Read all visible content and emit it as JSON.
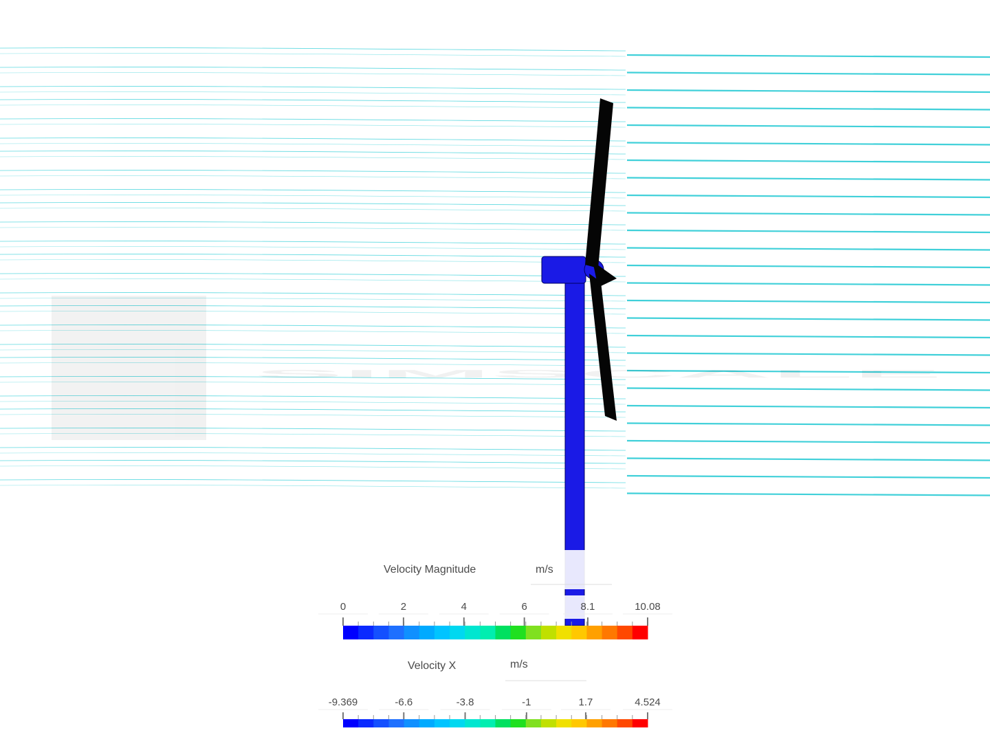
{
  "legends": [
    {
      "title": "Velocity Magnitude",
      "unit": "m/s",
      "ticks": [
        0,
        2,
        4,
        6,
        8.1,
        10.08
      ]
    },
    {
      "title": "Velocity X",
      "unit": "m/s",
      "ticks": [
        -9.369,
        -6.6,
        -3.8,
        -1,
        1.7,
        4.524
      ]
    }
  ]
}
